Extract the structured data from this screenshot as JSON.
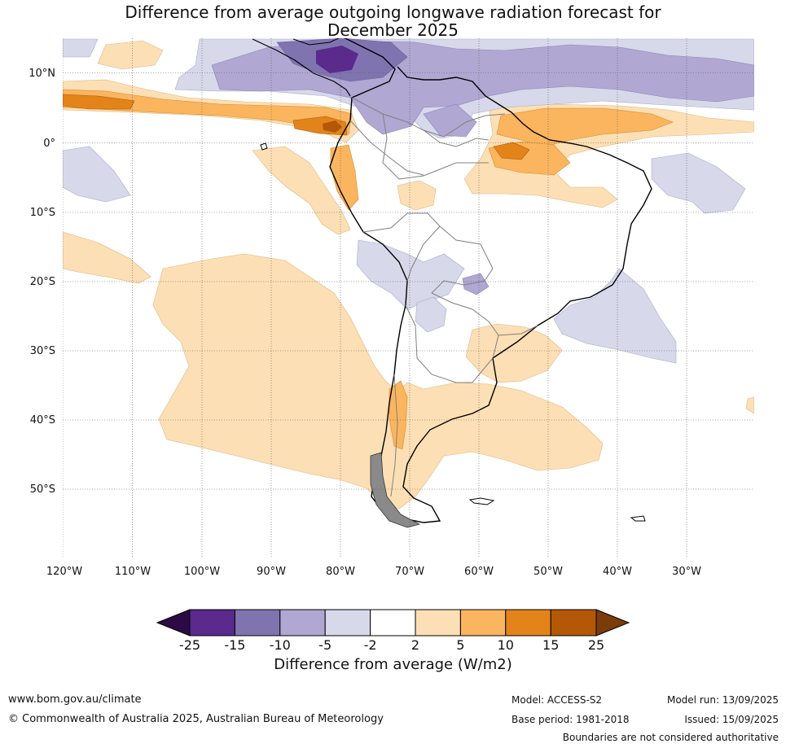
{
  "title": {
    "line1": "Difference from average outgoing longwave radiation forecast for",
    "line2": "December 2025"
  },
  "map": {
    "lat_labels": [
      "10°N",
      "0°",
      "10°S",
      "20°S",
      "30°S",
      "40°S",
      "50°S"
    ],
    "lon_labels": [
      "120°W",
      "110°W",
      "100°W",
      "90°W",
      "80°W",
      "70°W",
      "60°W",
      "50°W",
      "40°W",
      "30°W"
    ]
  },
  "colorbar": {
    "ticks": [
      "-25",
      "-15",
      "-10",
      "-5",
      "-2",
      "2",
      "5",
      "10",
      "15",
      "25"
    ],
    "colors": {
      "min_extend": "#2d0a45",
      "c1": "#5a2a8c",
      "c2": "#8074b0",
      "c3": "#b0a8d2",
      "c4": "#d7d8ea",
      "c5": "#ffffff",
      "c6": "#fddfb5",
      "c7": "#fbb55f",
      "c8": "#e3841a",
      "c9": "#b35806",
      "max_extend": "#7a3c09"
    },
    "label": "Difference from average (W/m2)"
  },
  "footer": {
    "website": "www.bom.gov.au/climate",
    "copyright": "© Commonwealth of Australia 2025, Australian Bureau of Meteorology",
    "model": "Model: ACCESS-S2",
    "base_period": "Base period: 1981-2018",
    "model_run": "Model run: 13/09/2025",
    "issued": "Issued: 15/09/2025",
    "boundaries": "Boundaries are not considered authoritative"
  }
}
